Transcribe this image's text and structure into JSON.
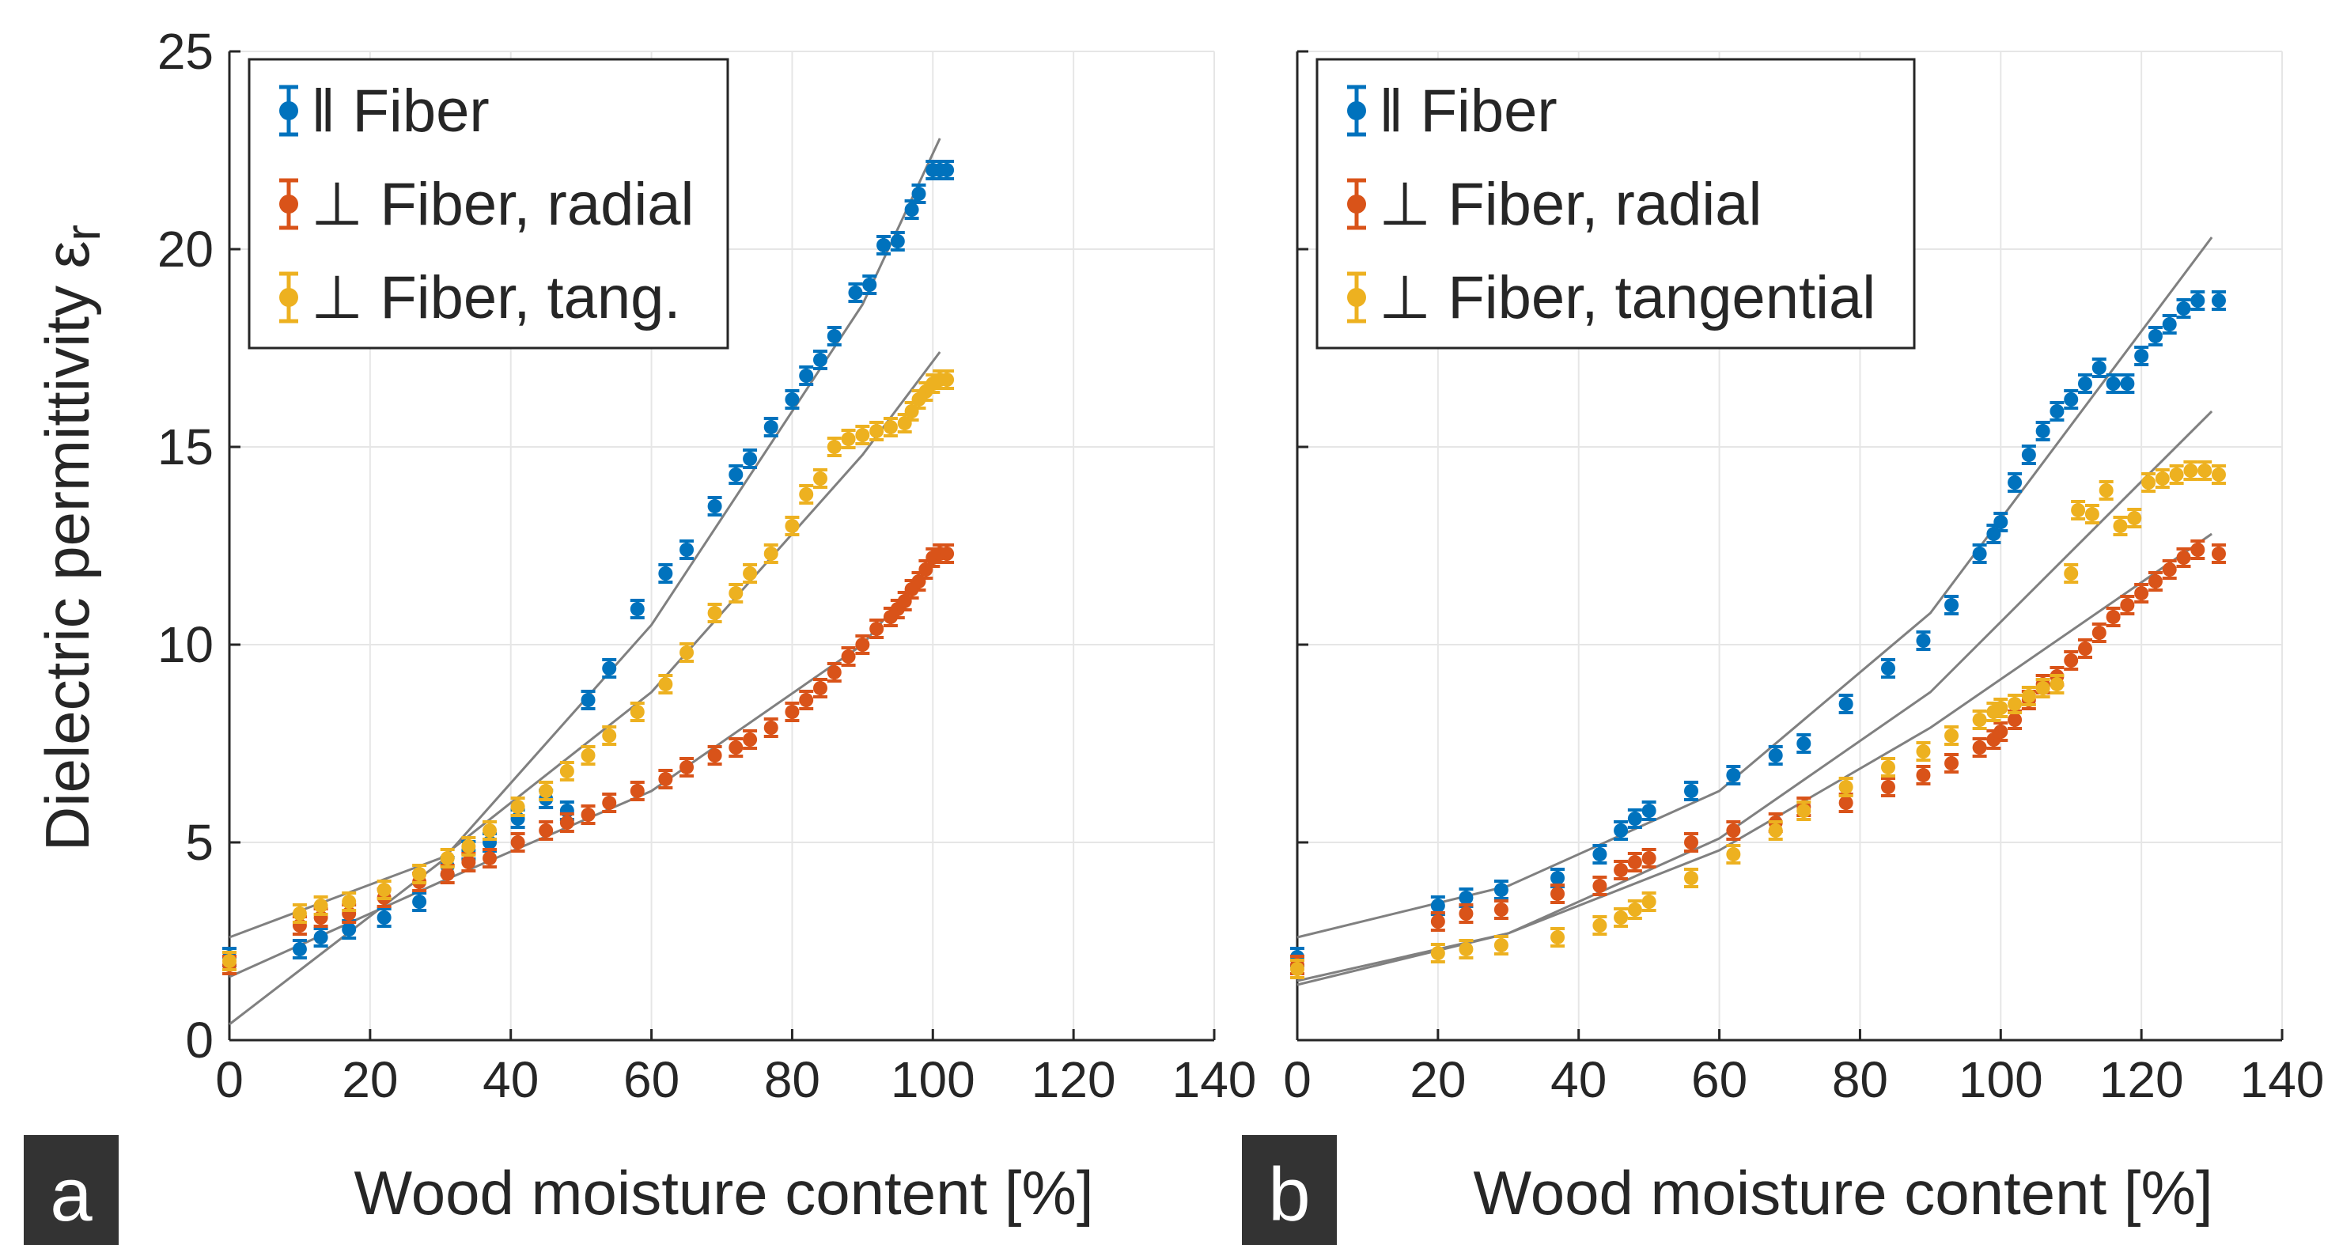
{
  "figure": {
    "ylabel": "Dielectric permittivity ε",
    "ylabel_sub": "r"
  },
  "chart_data": [
    {
      "type": "scatter",
      "panel": "a",
      "xlabel": "Wood moisture content [%]",
      "ylabel": "Dielectric permittivity εr",
      "xlim": [
        0,
        140
      ],
      "ylim": [
        0,
        25
      ],
      "xticks": [
        0,
        20,
        40,
        60,
        80,
        100,
        120,
        140
      ],
      "yticks": [
        0,
        5,
        10,
        15,
        20,
        25
      ],
      "grid": true,
      "legend_position": "top-left",
      "series": [
        {
          "name": "‖ Fiber",
          "color": "#0072BD",
          "x": [
            0,
            10,
            13,
            17,
            22,
            27,
            31,
            34,
            37,
            41,
            45,
            48,
            51,
            54,
            58,
            62,
            65,
            69,
            72,
            74,
            77,
            80,
            82,
            84,
            86,
            89,
            91,
            93,
            95,
            97,
            98,
            100,
            101,
            102
          ],
          "y": [
            2.1,
            2.3,
            2.6,
            2.8,
            3.1,
            3.5,
            4.4,
            4.8,
            5.0,
            5.6,
            6.1,
            5.8,
            8.6,
            9.4,
            10.9,
            11.8,
            12.4,
            13.5,
            14.3,
            14.7,
            15.5,
            16.2,
            16.8,
            17.2,
            17.8,
            18.9,
            19.1,
            20.1,
            20.2,
            21.0,
            21.4,
            22.0,
            22.0,
            22.0
          ],
          "fit": {
            "x": [
              0,
              30,
              60,
              90,
              101
            ],
            "y": [
              0.4,
              4.5,
              10.5,
              18.6,
              22.8
            ]
          }
        },
        {
          "name": "⊥ Fiber, radial",
          "color": "#D95319",
          "x": [
            0,
            10,
            13,
            17,
            22,
            27,
            31,
            34,
            37,
            41,
            45,
            48,
            51,
            54,
            58,
            62,
            65,
            69,
            72,
            74,
            77,
            80,
            82,
            84,
            86,
            88,
            90,
            92,
            94,
            95,
            96,
            97,
            98,
            99,
            100,
            101,
            102
          ],
          "y": [
            1.9,
            2.9,
            3.1,
            3.2,
            3.6,
            4.0,
            4.2,
            4.5,
            4.6,
            5.0,
            5.3,
            5.5,
            5.7,
            6.0,
            6.3,
            6.6,
            6.9,
            7.2,
            7.4,
            7.6,
            7.9,
            8.3,
            8.6,
            8.9,
            9.3,
            9.7,
            10.0,
            10.4,
            10.7,
            10.9,
            11.1,
            11.4,
            11.6,
            11.9,
            12.2,
            12.3,
            12.3
          ],
          "fit": {
            "x": [
              0,
              30,
              60,
              90,
              101
            ],
            "y": [
              1.6,
              4.0,
              6.3,
              10.0,
              12.3
            ]
          }
        },
        {
          "name": "⊥ Fiber, tang.",
          "color": "#EDB120",
          "x": [
            0,
            10,
            13,
            17,
            22,
            27,
            31,
            34,
            37,
            41,
            45,
            48,
            51,
            54,
            58,
            62,
            65,
            69,
            72,
            74,
            77,
            80,
            82,
            84,
            86,
            88,
            90,
            92,
            94,
            96,
            97,
            98,
            99,
            100,
            101,
            102
          ],
          "y": [
            2.0,
            3.2,
            3.4,
            3.5,
            3.8,
            4.2,
            4.6,
            4.9,
            5.3,
            5.9,
            6.3,
            6.8,
            7.2,
            7.7,
            8.3,
            9.0,
            9.8,
            10.8,
            11.3,
            11.8,
            12.3,
            13.0,
            13.8,
            14.2,
            15.0,
            15.2,
            15.3,
            15.4,
            15.5,
            15.6,
            15.9,
            16.2,
            16.4,
            16.6,
            16.7,
            16.7
          ],
          "fit": {
            "x": [
              0,
              30,
              60,
              90,
              101
            ],
            "y": [
              2.6,
              4.6,
              8.8,
              14.8,
              17.4
            ]
          }
        }
      ]
    },
    {
      "type": "scatter",
      "panel": "b",
      "xlabel": "Wood moisture content [%]",
      "ylabel": "",
      "xlim": [
        0,
        140
      ],
      "ylim": [
        0,
        25
      ],
      "xticks": [
        0,
        20,
        40,
        60,
        80,
        100,
        120,
        140
      ],
      "yticks": [
        0,
        5,
        10,
        15,
        20,
        25
      ],
      "grid": true,
      "legend_position": "top-left",
      "series": [
        {
          "name": "‖ Fiber",
          "color": "#0072BD",
          "x": [
            0,
            20,
            24,
            29,
            37,
            43,
            46,
            48,
            50,
            56,
            62,
            68,
            72,
            78,
            84,
            89,
            93,
            97,
            99,
            100,
            102,
            104,
            106,
            108,
            110,
            112,
            114,
            116,
            118,
            120,
            122,
            124,
            126,
            128,
            131
          ],
          "y": [
            2.1,
            3.4,
            3.6,
            3.8,
            4.1,
            4.7,
            5.3,
            5.6,
            5.8,
            6.3,
            6.7,
            7.2,
            7.5,
            8.5,
            9.4,
            10.1,
            11.0,
            12.3,
            12.8,
            13.1,
            14.1,
            14.8,
            15.4,
            15.9,
            16.2,
            16.6,
            17.0,
            16.6,
            16.6,
            17.3,
            17.8,
            18.1,
            18.5,
            18.7,
            18.7
          ],
          "fit": {
            "x": [
              0,
              30,
              60,
              90,
              130
            ],
            "y": [
              2.6,
              3.9,
              6.3,
              10.8,
              20.3
            ]
          }
        },
        {
          "name": "⊥ Fiber, radial",
          "color": "#D95319",
          "x": [
            0,
            20,
            24,
            29,
            37,
            43,
            46,
            48,
            50,
            56,
            62,
            68,
            72,
            78,
            84,
            89,
            93,
            97,
            99,
            100,
            102,
            104,
            106,
            108,
            110,
            112,
            114,
            116,
            118,
            120,
            122,
            124,
            126,
            128,
            131
          ],
          "y": [
            1.9,
            3.0,
            3.2,
            3.3,
            3.7,
            3.9,
            4.3,
            4.5,
            4.6,
            5.0,
            5.3,
            5.5,
            5.9,
            6.0,
            6.4,
            6.7,
            7.0,
            7.4,
            7.6,
            7.8,
            8.1,
            8.6,
            9.0,
            9.2,
            9.6,
            9.9,
            10.3,
            10.7,
            11.0,
            11.3,
            11.6,
            11.9,
            12.2,
            12.4,
            12.3
          ],
          "fit": {
            "x": [
              0,
              30,
              60,
              90,
              130
            ],
            "y": [
              1.4,
              2.7,
              4.8,
              7.9,
              12.8
            ]
          }
        },
        {
          "name": "⊥ Fiber, tangential",
          "color": "#EDB120",
          "x": [
            0,
            20,
            24,
            29,
            37,
            43,
            46,
            48,
            50,
            56,
            62,
            68,
            72,
            78,
            84,
            89,
            93,
            97,
            99,
            100,
            102,
            104,
            106,
            108,
            110,
            111,
            113,
            115,
            117,
            119,
            121,
            123,
            125,
            127,
            129,
            131
          ],
          "y": [
            1.8,
            2.2,
            2.3,
            2.4,
            2.6,
            2.9,
            3.1,
            3.3,
            3.5,
            4.1,
            4.7,
            5.3,
            5.8,
            6.4,
            6.9,
            7.3,
            7.7,
            8.1,
            8.3,
            8.4,
            8.5,
            8.7,
            8.9,
            9.0,
            11.8,
            13.4,
            13.3,
            13.9,
            13.0,
            13.2,
            14.1,
            14.2,
            14.3,
            14.4,
            14.4,
            14.3
          ],
          "fit": {
            "x": [
              0,
              30,
              60,
              90,
              130
            ],
            "y": [
              1.5,
              2.7,
              5.1,
              8.8,
              15.9
            ]
          }
        }
      ]
    }
  ]
}
